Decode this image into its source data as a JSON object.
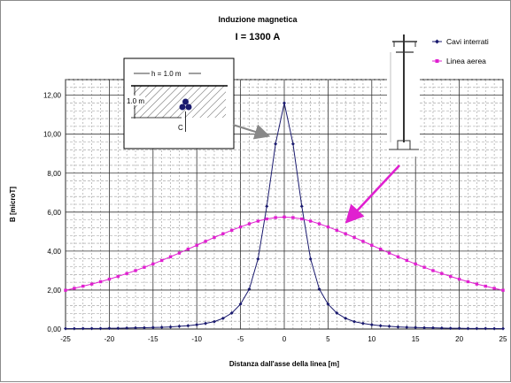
{
  "chart_data": {
    "type": "line",
    "title": "Induzione magnetica",
    "subtitle": "I = 1300 A",
    "xlabel": "Distanza dall'asse della linea [m]",
    "ylabel": "B [microT]",
    "xlim": [
      -25,
      25
    ],
    "ylim": [
      0,
      12.8
    ],
    "xticks": [
      -25,
      -20,
      -15,
      -10,
      -5,
      0,
      5,
      10,
      15,
      20,
      25
    ],
    "yticks": [
      "0,00",
      "2,00",
      "4,00",
      "6,00",
      "8,00",
      "10,00",
      "12,00"
    ],
    "ytick_values": [
      0,
      2,
      4,
      6,
      8,
      10,
      12
    ],
    "grid": true,
    "legend_position": "top-right",
    "series": [
      {
        "name": "Cavi interrati",
        "color": "#1a1a6e",
        "marker": "diamond",
        "x": [
          -25,
          -24,
          -23,
          -22,
          -21,
          -20,
          -19,
          -18,
          -17,
          -16,
          -15,
          -14,
          -13,
          -12,
          -11,
          -10,
          -9,
          -8,
          -7,
          -6,
          -5,
          -4,
          -3,
          -2,
          -1,
          0,
          1,
          2,
          3,
          4,
          5,
          6,
          7,
          8,
          9,
          10,
          11,
          12,
          13,
          14,
          15,
          16,
          17,
          18,
          19,
          20,
          21,
          22,
          23,
          24,
          25
        ],
        "y": [
          0.02,
          0.02,
          0.03,
          0.03,
          0.03,
          0.04,
          0.04,
          0.05,
          0.06,
          0.07,
          0.08,
          0.09,
          0.11,
          0.14,
          0.17,
          0.22,
          0.29,
          0.38,
          0.55,
          0.82,
          1.28,
          2.05,
          3.6,
          6.3,
          9.5,
          11.6,
          9.5,
          6.3,
          3.6,
          2.05,
          1.28,
          0.82,
          0.55,
          0.38,
          0.29,
          0.22,
          0.17,
          0.14,
          0.11,
          0.09,
          0.08,
          0.07,
          0.06,
          0.05,
          0.04,
          0.04,
          0.03,
          0.03,
          0.03,
          0.02,
          0.02
        ]
      },
      {
        "name": "Linea aerea",
        "color": "#e020d0",
        "marker": "square",
        "x": [
          -25,
          -24,
          -23,
          -22,
          -21,
          -20,
          -19,
          -18,
          -17,
          -16,
          -15,
          -14,
          -13,
          -12,
          -11,
          -10,
          -9,
          -8,
          -7,
          -6,
          -5,
          -4,
          -3,
          -2,
          -1,
          0,
          1,
          2,
          3,
          4,
          5,
          6,
          7,
          8,
          9,
          10,
          11,
          12,
          13,
          14,
          15,
          16,
          17,
          18,
          19,
          20,
          21,
          22,
          23,
          24,
          25
        ],
        "y": [
          1.99,
          2.09,
          2.2,
          2.31,
          2.43,
          2.56,
          2.7,
          2.85,
          3.0,
          3.17,
          3.34,
          3.52,
          3.71,
          3.9,
          4.1,
          4.3,
          4.5,
          4.7,
          4.89,
          5.07,
          5.24,
          5.4,
          5.54,
          5.65,
          5.72,
          5.75,
          5.72,
          5.65,
          5.54,
          5.4,
          5.24,
          5.07,
          4.89,
          4.7,
          4.5,
          4.3,
          4.1,
          3.9,
          3.71,
          3.52,
          3.34,
          3.17,
          3.0,
          2.85,
          2.7,
          2.56,
          2.43,
          2.31,
          2.2,
          2.09,
          1.99
        ]
      }
    ],
    "inset_labels": {
      "depth_horizontal": "h = 1.0 m",
      "depth_vertical": "1.0 m",
      "cable_label": "C"
    }
  }
}
